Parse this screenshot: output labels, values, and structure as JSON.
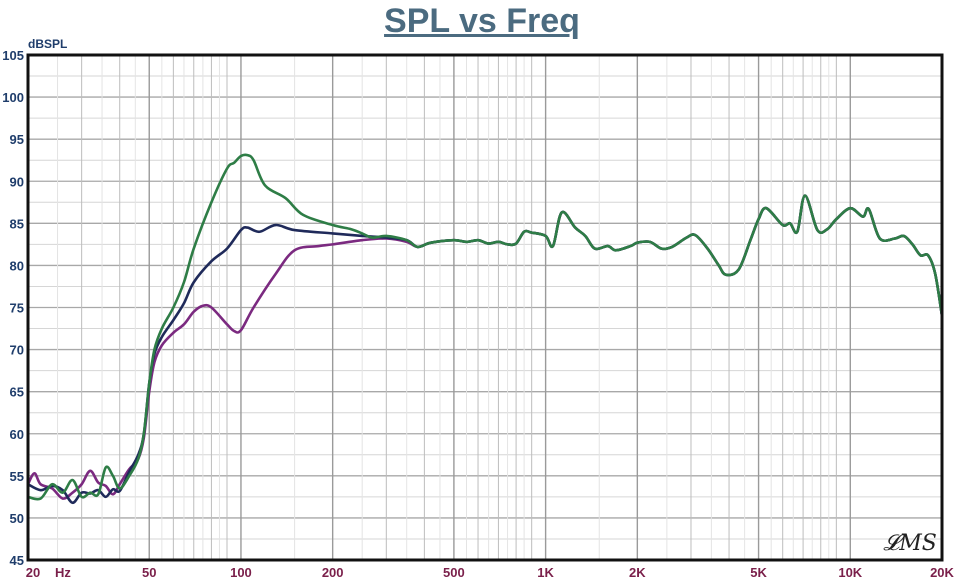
{
  "chart_data": {
    "type": "line",
    "title": "SPL vs Freq",
    "ylabel": "dBSPL",
    "xlabel": "",
    "x_unit": "Hz",
    "xscale": "log",
    "xlim": [
      20,
      20000
    ],
    "ylim": [
      45,
      105
    ],
    "grid": true,
    "yticks": [
      45,
      50,
      55,
      60,
      65,
      70,
      75,
      80,
      85,
      90,
      95,
      100,
      105
    ],
    "xticks": [
      {
        "v": 20,
        "label": "20"
      },
      {
        "v": 50,
        "label": "50"
      },
      {
        "v": 100,
        "label": "100"
      },
      {
        "v": 200,
        "label": "200"
      },
      {
        "v": 500,
        "label": "500"
      },
      {
        "v": 1000,
        "label": "1K"
      },
      {
        "v": 2000,
        "label": "2K"
      },
      {
        "v": 5000,
        "label": "5K"
      },
      {
        "v": 10000,
        "label": "10K"
      },
      {
        "v": 20000,
        "label": "20K"
      }
    ],
    "watermark": "LMS",
    "series": [
      {
        "color": "#7b2a80",
        "x": [
          20,
          21,
          22,
          24,
          26,
          28,
          30,
          32,
          34,
          36,
          38,
          40,
          43,
          46,
          48,
          50,
          52,
          55,
          60,
          65,
          70,
          75,
          80,
          90,
          95,
          100,
          110,
          130,
          150,
          180,
          200,
          250,
          300,
          350,
          380,
          420,
          500,
          550,
          600,
          650,
          700,
          750,
          800,
          850,
          900,
          1000,
          1057,
          1130,
          1250,
          1350,
          1450,
          1600,
          1700,
          1900,
          2000,
          2200,
          2400,
          2600,
          2900,
          3100,
          3400,
          3700,
          3900,
          4300,
          4700,
          5000,
          5300,
          6000,
          6340,
          6700,
          7100,
          7800,
          8400,
          9000,
          10000,
          11000,
          11500,
          12500,
          14000,
          15000,
          16000,
          17000,
          18000,
          19000,
          20000
        ],
        "y": [
          54,
          55.3,
          54,
          53.5,
          52.3,
          53,
          54,
          55.6,
          54.2,
          53.8,
          52.8,
          54,
          55.8,
          57,
          59.5,
          65,
          68.5,
          70.5,
          72,
          73,
          74.5,
          75.2,
          75,
          73,
          72.2,
          72.3,
          75,
          79,
          81.8,
          82.3,
          82.5,
          83,
          83.2,
          82.8,
          82.2,
          82.7,
          83,
          82.8,
          83,
          82.6,
          82.8,
          82.5,
          82.6,
          84,
          83.9,
          83.5,
          82.3,
          86.3,
          84.5,
          83.5,
          82,
          82.3,
          81.8,
          82.3,
          82.7,
          82.8,
          82,
          82.2,
          83.3,
          83.6,
          82,
          80,
          78.9,
          79.5,
          83,
          85.5,
          86.8,
          84.8,
          85,
          84,
          88.3,
          84.2,
          84.3,
          85.5,
          86.8,
          85.8,
          86.7,
          83.2,
          83.2,
          83.5,
          82.5,
          81.2,
          81.2,
          79,
          74
        ]
      },
      {
        "color": "#1f2a5a",
        "x": [
          20,
          22,
          24,
          26,
          28,
          30,
          32,
          34,
          36,
          38,
          40,
          43,
          46,
          48,
          50,
          52,
          55,
          60,
          65,
          70,
          80,
          90,
          100,
          105,
          115,
          130,
          150,
          200,
          250,
          300,
          350,
          380,
          420,
          500,
          550,
          600,
          650,
          700,
          750,
          800,
          850,
          900,
          1000,
          1057,
          1130,
          1250,
          1350,
          1450,
          1600,
          1700,
          1900,
          2000,
          2200,
          2400,
          2600,
          2900,
          3100,
          3400,
          3700,
          3900,
          4300,
          4700,
          5000,
          5300,
          6000,
          6340,
          6700,
          7100,
          7800,
          8400,
          9000,
          10000,
          11000,
          11500,
          12500,
          14000,
          15000,
          16000,
          17000,
          18000,
          19000,
          20000
        ],
        "y": [
          54,
          53.3,
          53.8,
          53.3,
          51.8,
          53,
          52.9,
          53.3,
          52.5,
          53.4,
          53.2,
          55.5,
          57.5,
          60,
          66,
          69.5,
          71.5,
          73.5,
          75.5,
          78,
          80.5,
          82,
          84.2,
          84.5,
          84,
          84.8,
          84.2,
          83.8,
          83.5,
          83.3,
          83,
          82.2,
          82.7,
          83,
          82.8,
          83,
          82.6,
          82.8,
          82.5,
          82.6,
          84,
          83.9,
          83.5,
          82.3,
          86.3,
          84.5,
          83.5,
          82,
          82.3,
          81.8,
          82.3,
          82.7,
          82.8,
          82,
          82.2,
          83.3,
          83.6,
          82,
          80,
          78.9,
          79.5,
          83,
          85.5,
          86.8,
          84.8,
          85,
          84,
          88.3,
          84.2,
          84.3,
          85.5,
          86.8,
          85.8,
          86.7,
          83.2,
          83.2,
          83.5,
          82.5,
          81.2,
          81.2,
          79,
          74
        ]
      },
      {
        "color": "#2e7d46",
        "x": [
          20,
          22,
          24,
          26,
          28,
          30,
          32,
          34,
          36,
          38,
          40,
          43,
          46,
          48,
          50,
          52,
          55,
          60,
          65,
          70,
          80,
          90,
          95,
          100,
          105,
          110,
          120,
          140,
          160,
          200,
          230,
          250,
          270,
          300,
          350,
          380,
          420,
          500,
          550,
          600,
          650,
          700,
          750,
          800,
          850,
          900,
          1000,
          1057,
          1130,
          1250,
          1350,
          1450,
          1600,
          1700,
          1900,
          2000,
          2200,
          2400,
          2600,
          2900,
          3100,
          3400,
          3700,
          3900,
          4300,
          4700,
          5000,
          5300,
          6000,
          6340,
          6700,
          7100,
          7800,
          8400,
          9000,
          10000,
          11000,
          11500,
          12500,
          14000,
          15000,
          16000,
          17000,
          18000,
          19000,
          20000
        ],
        "y": [
          52.5,
          52.3,
          54,
          53,
          54.5,
          52.5,
          53,
          52.8,
          56,
          55,
          53.5,
          55,
          57,
          60,
          66,
          70,
          72.5,
          75,
          78,
          82,
          87.5,
          91.5,
          92.2,
          93,
          93.1,
          92.5,
          89.5,
          88,
          86,
          84.8,
          84.3,
          83.8,
          83.3,
          83.5,
          83,
          82.2,
          82.7,
          83,
          82.8,
          83,
          82.6,
          82.8,
          82.5,
          82.6,
          84,
          83.9,
          83.5,
          82.3,
          86.3,
          84.5,
          83.5,
          82,
          82.3,
          81.8,
          82.3,
          82.7,
          82.8,
          82,
          82.2,
          83.3,
          83.6,
          82,
          80,
          78.9,
          79.5,
          83,
          85.5,
          86.8,
          84.8,
          85,
          84,
          88.3,
          84.2,
          84.3,
          85.5,
          86.8,
          85.8,
          86.7,
          83.2,
          83.2,
          83.5,
          82.5,
          81.2,
          81.2,
          79,
          74
        ]
      }
    ]
  }
}
